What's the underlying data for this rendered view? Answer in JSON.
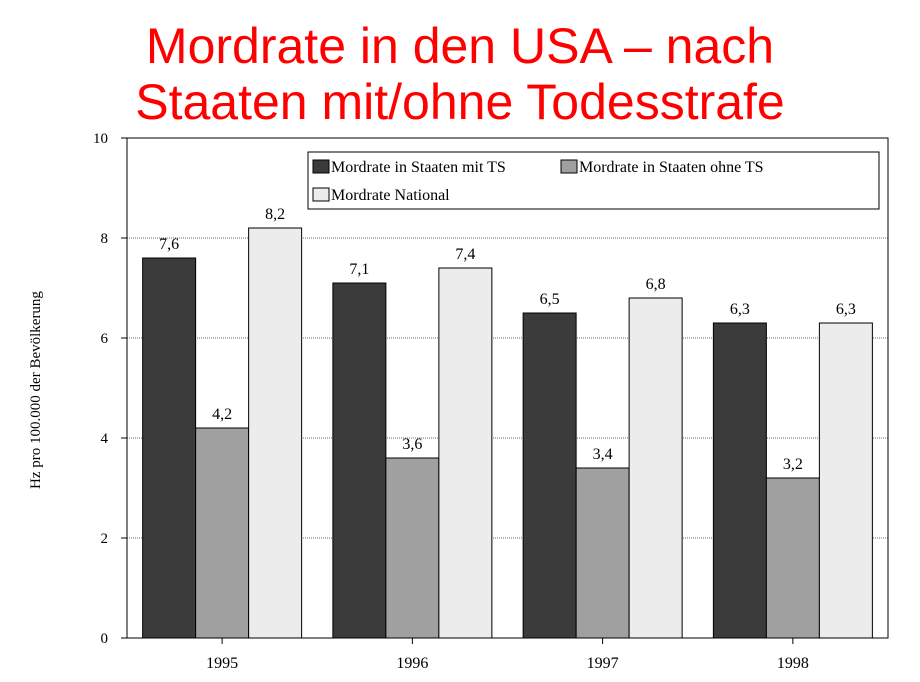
{
  "title_lines": [
    "Mordrate in den USA – nach",
    "Staaten mit/ohne Todesstrafe"
  ],
  "chart_data": {
    "type": "bar",
    "categories": [
      "1995",
      "1996",
      "1997",
      "1998"
    ],
    "series": [
      {
        "name": "Mordrate in Staaten mit TS",
        "color": "#3b3b3b",
        "values": [
          7.6,
          7.1,
          6.5,
          6.3
        ],
        "labels": [
          "7,6",
          "7,1",
          "6,5",
          "6,3"
        ]
      },
      {
        "name": "Mordrate in Staaten ohne TS",
        "color": "#a0a0a0",
        "values": [
          4.2,
          3.6,
          3.4,
          3.2
        ],
        "labels": [
          "4,2",
          "3,6",
          "3,4",
          "3,2"
        ]
      },
      {
        "name": "Mordrate National",
        "color": "#ececec",
        "values": [
          8.2,
          7.4,
          6.8,
          6.3
        ],
        "labels": [
          "8,2",
          "7,4",
          "6,8",
          "6,3"
        ]
      }
    ],
    "ylabel": "Hz pro 100.000 der Bevölkerung",
    "xlabel": "",
    "ylim": [
      0,
      10
    ],
    "yticks": [
      "0",
      "2",
      "4",
      "6",
      "8",
      "10"
    ],
    "grid": true,
    "legend_position": "top-right"
  }
}
